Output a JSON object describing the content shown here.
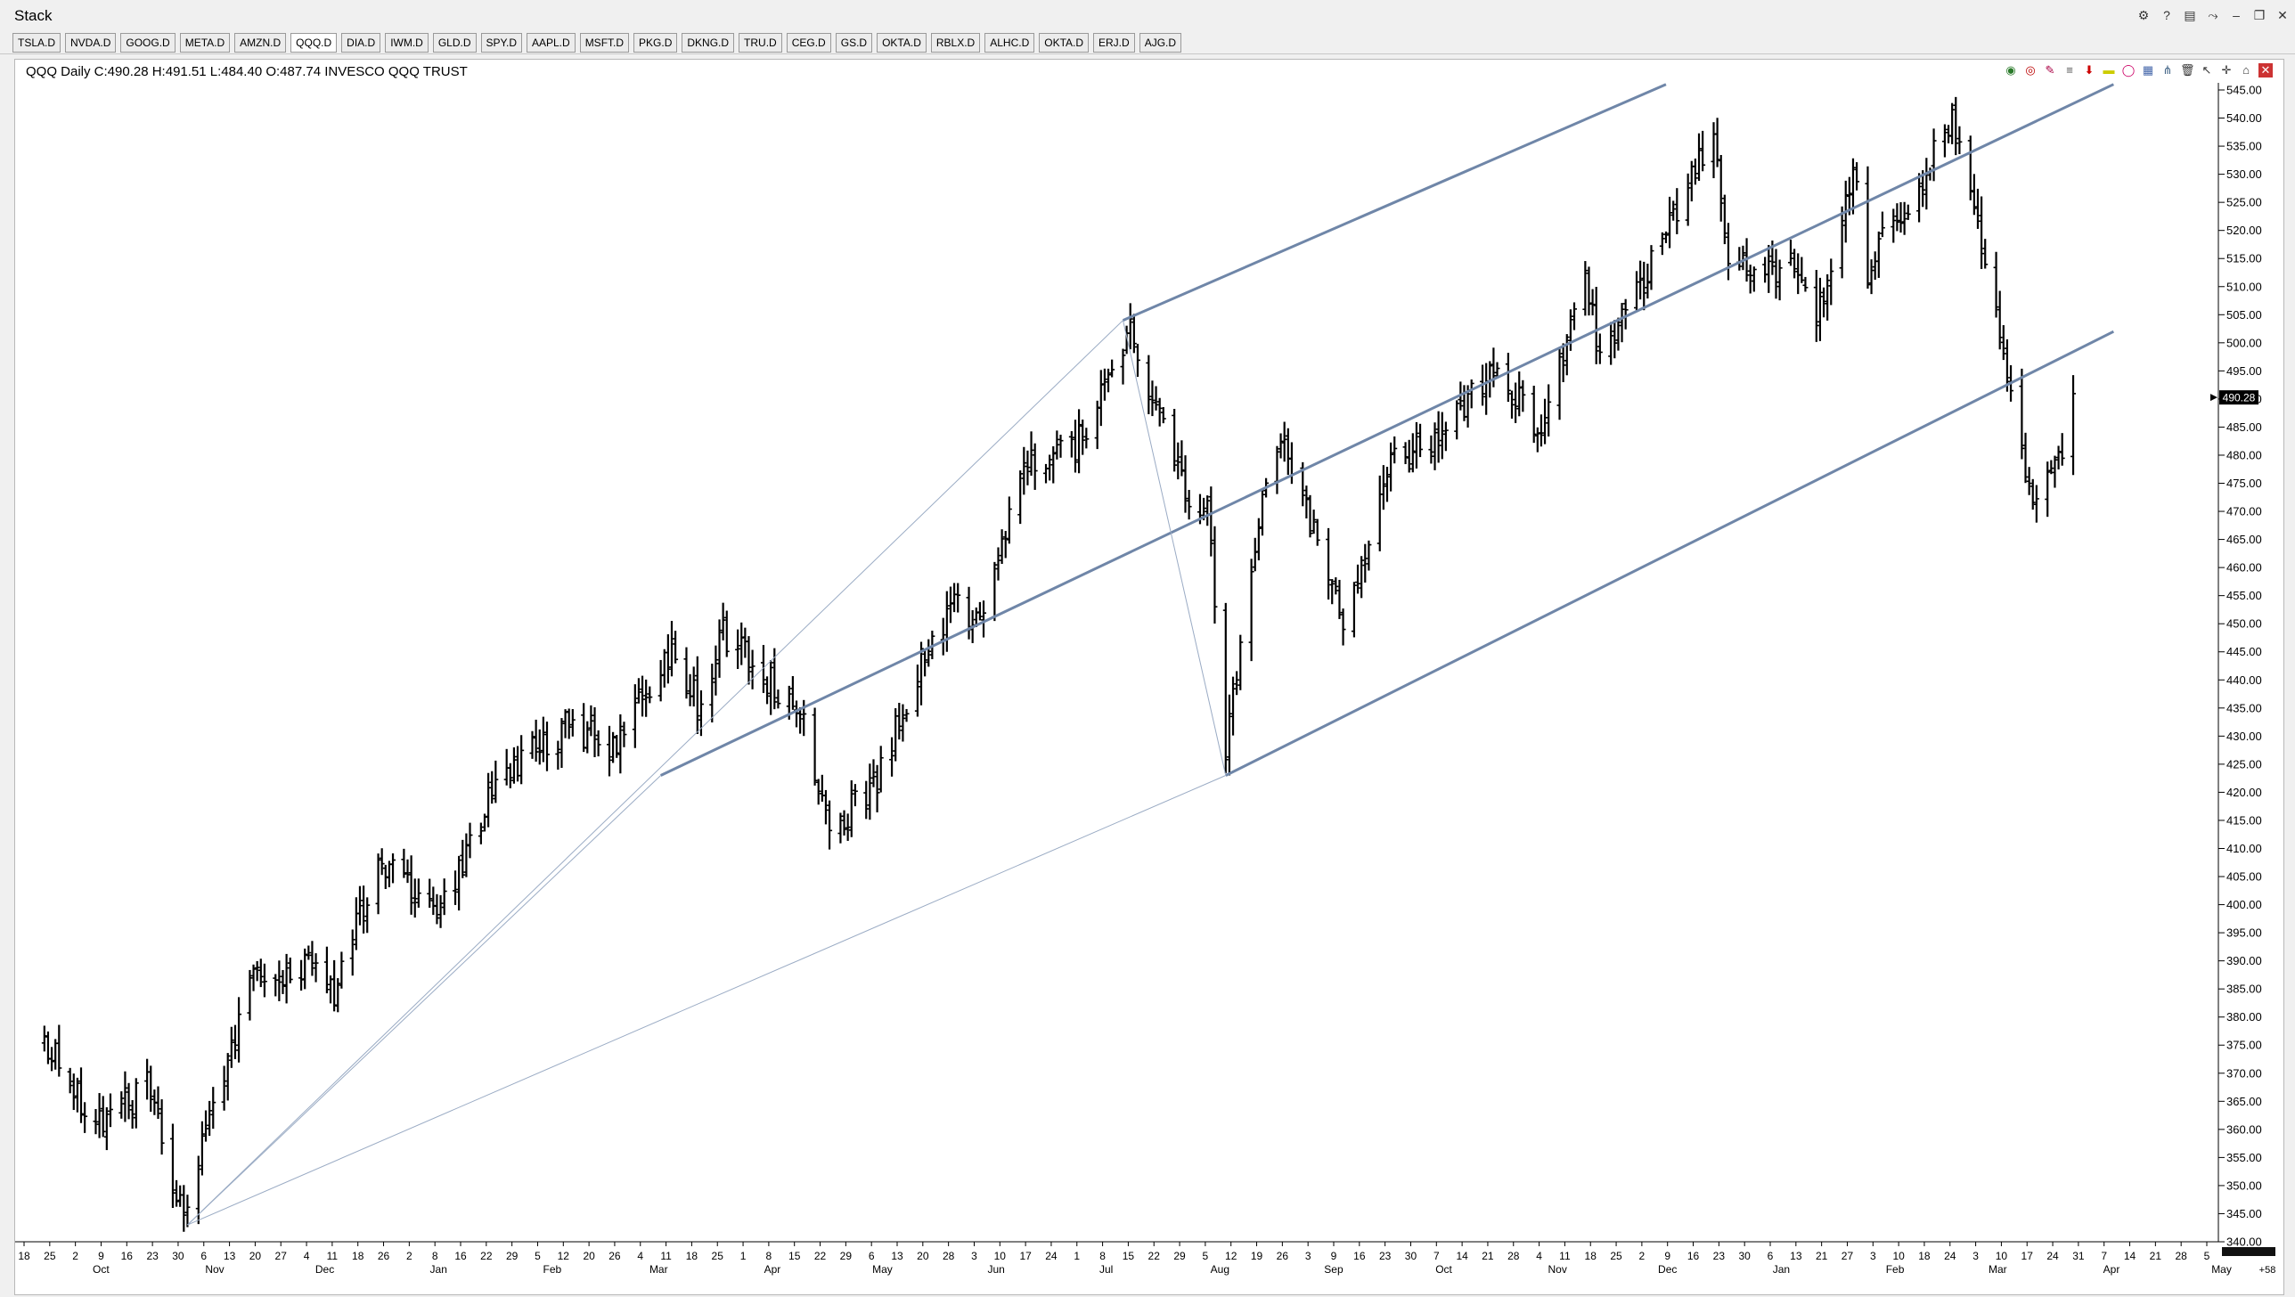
{
  "window": {
    "title": "Stack",
    "controls": [
      "settings-icon",
      "help-icon",
      "layout-icon",
      "link-icon",
      "minimize-icon",
      "restore-icon",
      "close-icon"
    ]
  },
  "tabs": [
    {
      "label": "TSLA.D"
    },
    {
      "label": "NVDA.D"
    },
    {
      "label": "GOOG.D"
    },
    {
      "label": "META.D"
    },
    {
      "label": "AMZN.D"
    },
    {
      "label": "QQQ.D",
      "active": true
    },
    {
      "label": "DIA.D"
    },
    {
      "label": "IWM.D"
    },
    {
      "label": "GLD.D"
    },
    {
      "label": "SPY.D"
    },
    {
      "label": "AAPL.D"
    },
    {
      "label": "MSFT.D"
    },
    {
      "label": "PKG.D"
    },
    {
      "label": "DKNG.D"
    },
    {
      "label": "TRU.D"
    },
    {
      "label": "CEG.D"
    },
    {
      "label": "GS.D"
    },
    {
      "label": "OKTA.D"
    },
    {
      "label": "RBLX.D"
    },
    {
      "label": "ALHC.D"
    },
    {
      "label": "OKTA.D"
    },
    {
      "label": "ERJ.D"
    },
    {
      "label": "AJG.D"
    }
  ],
  "chart_header": "QQQ Daily  C:490.28  H:491.51  L:484.40  O:487.74  INVESCO QQQ TRUST",
  "chart_tools": [
    "globe-icon",
    "record-icon",
    "pencil-icon",
    "fib-icon",
    "arrow-down-icon",
    "rectangle-icon",
    "ellipse-icon",
    "grid-icon",
    "pitchfork-icon",
    "trash-icon",
    "cursor-icon",
    "crosshair-icon",
    "lock-icon",
    "close-icon"
  ],
  "colors": {
    "candle": "#000000",
    "trendline": "#6f86a8",
    "thinline": "#9aabc4",
    "price_tag_bg": "#000000"
  },
  "chart_data": {
    "type": "ohlc",
    "symbol": "QQQ",
    "interval": "Daily",
    "last": {
      "close": 490.28,
      "high": 491.51,
      "low": 484.4,
      "open": 487.74
    },
    "last_price_label": "490.28",
    "y_axis": {
      "min": 340,
      "max": 545,
      "step": 5,
      "tick_labels": [
        "545.00",
        "540.00",
        "535.00",
        "530.00",
        "525.00",
        "520.00",
        "515.00",
        "510.00",
        "505.00",
        "500.00",
        "495.00",
        "490.00",
        "485.00",
        "480.00",
        "475.00",
        "470.00",
        "465.00",
        "460.00",
        "455.00",
        "450.00",
        "445.00",
        "440.00",
        "435.00",
        "430.00",
        "425.00",
        "420.00",
        "415.00",
        "410.00",
        "405.00",
        "400.00",
        "395.00",
        "390.00",
        "385.00",
        "380.00",
        "375.00",
        "370.00",
        "365.00",
        "360.00",
        "355.00",
        "350.00",
        "345.00",
        "340.00"
      ]
    },
    "x_axis": {
      "day_labels": [
        "18",
        "25",
        "2",
        "9",
        "16",
        "23",
        "30",
        "6",
        "13",
        "20",
        "27",
        "4",
        "11",
        "18",
        "26",
        "2",
        "8",
        "16",
        "22",
        "29",
        "5",
        "12",
        "20",
        "26",
        "4",
        "11",
        "18",
        "25",
        "1",
        "8",
        "15",
        "22",
        "29",
        "6",
        "13",
        "20",
        "28",
        "3",
        "10",
        "17",
        "24",
        "1",
        "8",
        "15",
        "22",
        "29",
        "5",
        "12",
        "19",
        "26",
        "3",
        "9",
        "16",
        "23",
        "30",
        "7",
        "14",
        "21",
        "28",
        "4",
        "11",
        "18",
        "25",
        "2",
        "9",
        "16",
        "23",
        "30",
        "6",
        "13",
        "21",
        "27",
        "3",
        "10",
        "18",
        "24",
        "3",
        "10",
        "17",
        "24",
        "31",
        "7",
        "14",
        "21",
        "28",
        "5"
      ],
      "month_labels": [
        "Oct",
        "Nov",
        "Dec",
        "Jan",
        "Feb",
        "Mar",
        "Apr",
        "May",
        "Jun",
        "Jul",
        "Aug",
        "Sep",
        "Oct",
        "Nov",
        "Dec",
        "Jan",
        "Feb",
        "Mar",
        "Apr",
        "May"
      ],
      "corner_label": "+58"
    },
    "anchors": [
      {
        "date": "2023-09-18",
        "price": 376
      },
      {
        "date": "2023-10-02",
        "price": 360
      },
      {
        "date": "2023-10-16",
        "price": 368
      },
      {
        "date": "2023-10-26",
        "price": 343
      },
      {
        "date": "2023-11-03",
        "price": 365
      },
      {
        "date": "2023-11-14",
        "price": 386
      },
      {
        "date": "2023-12-01",
        "price": 390
      },
      {
        "date": "2023-12-06",
        "price": 385
      },
      {
        "date": "2023-12-19",
        "price": 408
      },
      {
        "date": "2024-01-04",
        "price": 398
      },
      {
        "date": "2024-01-19",
        "price": 422
      },
      {
        "date": "2024-02-08",
        "price": 432
      },
      {
        "date": "2024-02-21",
        "price": 428
      },
      {
        "date": "2024-03-07",
        "price": 446
      },
      {
        "date": "2024-03-15",
        "price": 435
      },
      {
        "date": "2024-03-21",
        "price": 448
      },
      {
        "date": "2024-03-28",
        "price": 444
      },
      {
        "date": "2024-04-12",
        "price": 433
      },
      {
        "date": "2024-04-19",
        "price": 414
      },
      {
        "date": "2024-05-01",
        "price": 420
      },
      {
        "date": "2024-05-15",
        "price": 446
      },
      {
        "date": "2024-05-23",
        "price": 453
      },
      {
        "date": "2024-05-31",
        "price": 450
      },
      {
        "date": "2024-06-12",
        "price": 480
      },
      {
        "date": "2024-06-24",
        "price": 480
      },
      {
        "date": "2024-07-10",
        "price": 502
      },
      {
        "date": "2024-07-24",
        "price": 475
      },
      {
        "date": "2024-07-31",
        "price": 470
      },
      {
        "date": "2024-08-05",
        "price": 428
      },
      {
        "date": "2024-08-16",
        "price": 477
      },
      {
        "date": "2024-08-21",
        "price": 482
      },
      {
        "date": "2024-09-06",
        "price": 450
      },
      {
        "date": "2024-09-19",
        "price": 478
      },
      {
        "date": "2024-10-04",
        "price": 485
      },
      {
        "date": "2024-10-17",
        "price": 494
      },
      {
        "date": "2024-10-31",
        "price": 484
      },
      {
        "date": "2024-11-11",
        "price": 514
      },
      {
        "date": "2024-11-15",
        "price": 496
      },
      {
        "date": "2024-12-02",
        "price": 518
      },
      {
        "date": "2024-12-16",
        "price": 538
      },
      {
        "date": "2024-12-20",
        "price": 514
      },
      {
        "date": "2025-01-07",
        "price": 513
      },
      {
        "date": "2025-01-13",
        "price": 503
      },
      {
        "date": "2025-01-23",
        "price": 532
      },
      {
        "date": "2025-01-27",
        "price": 513
      },
      {
        "date": "2025-02-19",
        "price": 539
      },
      {
        "date": "2025-03-03",
        "price": 505
      },
      {
        "date": "2025-03-13",
        "price": 469
      },
      {
        "date": "2025-03-18",
        "price": 478
      },
      {
        "date": "2025-03-21",
        "price": 482
      },
      {
        "date": "2025-03-24",
        "price": 490
      }
    ],
    "trendlines": [
      {
        "from": [
          "2024-03-04",
          423
        ],
        "to": [
          "2025-04-04",
          546
        ],
        "style": "thick"
      },
      {
        "from": [
          "2024-07-08",
          504
        ],
        "to": [
          "2024-12-03",
          546
        ],
        "style": "thick"
      },
      {
        "from": [
          "2024-08-05",
          423
        ],
        "to": [
          "2025-04-04",
          502
        ],
        "style": "thick"
      },
      {
        "from": [
          "2023-10-27",
          343
        ],
        "to": [
          "2024-03-04",
          423
        ],
        "style": "thin"
      },
      {
        "from": [
          "2023-10-27",
          343
        ],
        "to": [
          "2024-07-08",
          504
        ],
        "style": "thin"
      },
      {
        "from": [
          "2023-10-27",
          343
        ],
        "to": [
          "2024-08-05",
          423
        ],
        "style": "thin"
      },
      {
        "from": [
          "2024-07-08",
          504
        ],
        "to": [
          "2024-08-05",
          423
        ],
        "style": "thin"
      }
    ]
  }
}
